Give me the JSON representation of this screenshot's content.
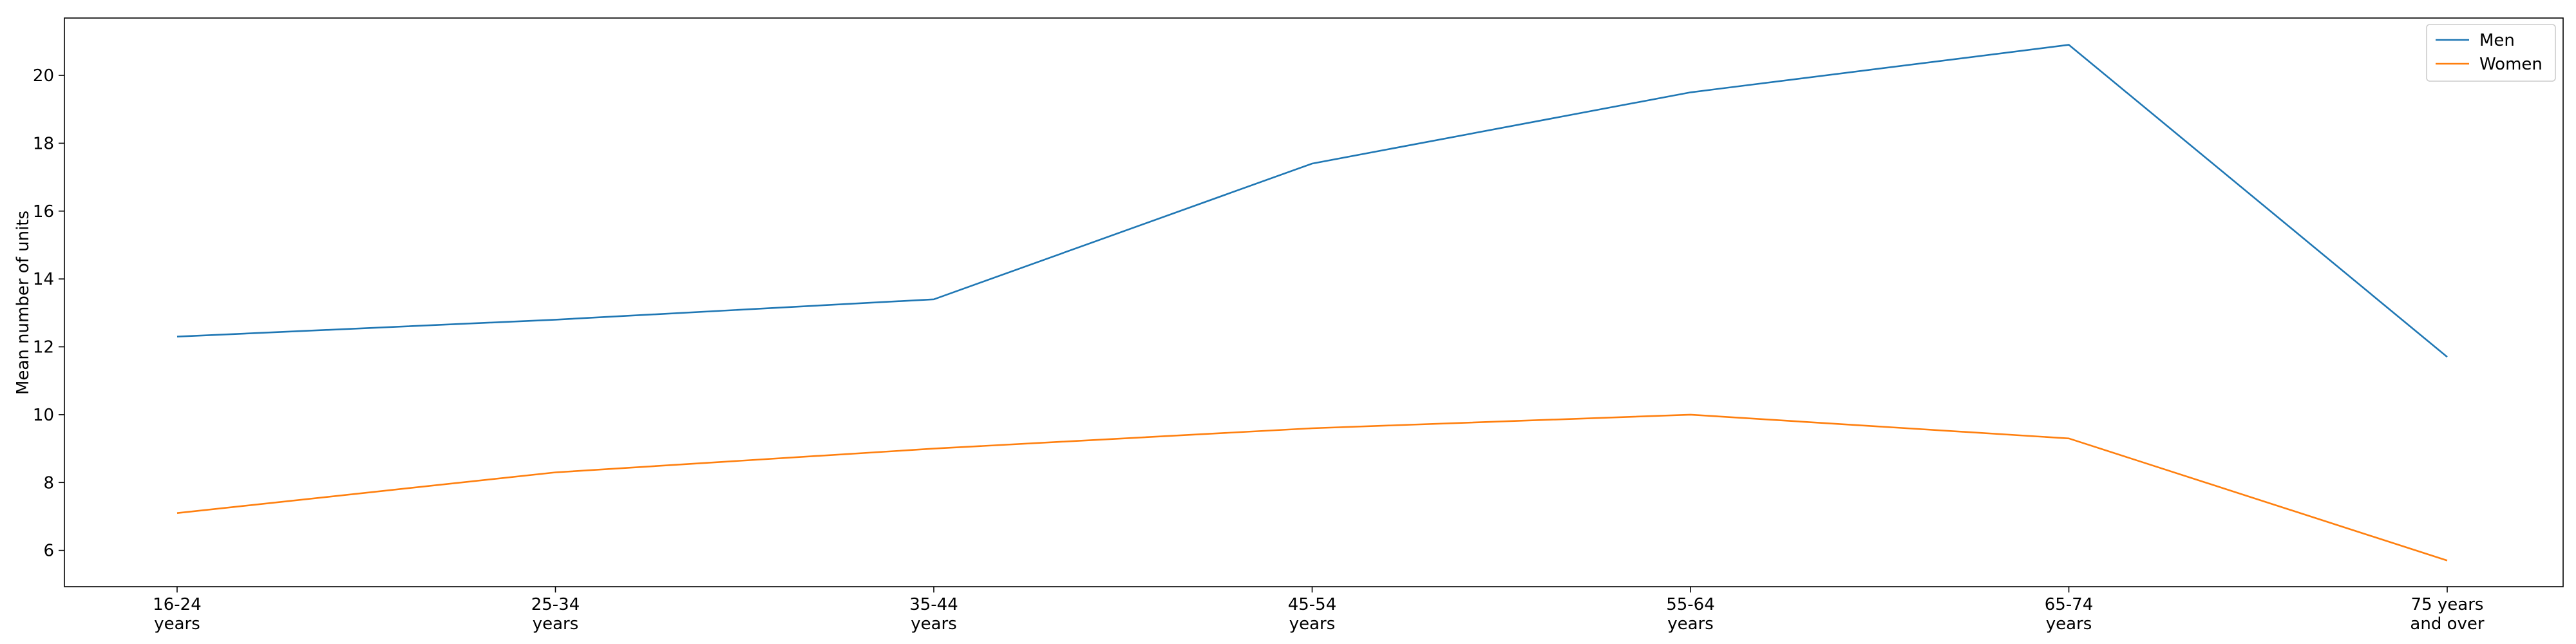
{
  "chart_data": {
    "type": "line",
    "title": "",
    "xlabel": "",
    "ylabel": "Mean number of units",
    "categories": [
      [
        "16-24",
        "years"
      ],
      [
        "25-34",
        "years"
      ],
      [
        "35-44",
        "years"
      ],
      [
        "45-54",
        "years"
      ],
      [
        "55-64",
        "years"
      ],
      [
        "65-74",
        "years"
      ],
      [
        "75 years",
        "and over"
      ]
    ],
    "yticks": [
      6,
      8,
      10,
      12,
      14,
      16,
      18,
      20
    ],
    "ylim": [
      4.93,
      21.69
    ],
    "grid": false,
    "legend_position": "top-right",
    "series": [
      {
        "name": "Men",
        "color": "#1f77b4",
        "values": [
          12.3,
          12.8,
          13.4,
          17.4,
          19.5,
          20.9,
          11.7
        ]
      },
      {
        "name": "Women",
        "color": "#ff7f0e",
        "values": [
          7.1,
          8.3,
          9.0,
          9.6,
          10.0,
          9.3,
          5.7
        ]
      }
    ]
  }
}
